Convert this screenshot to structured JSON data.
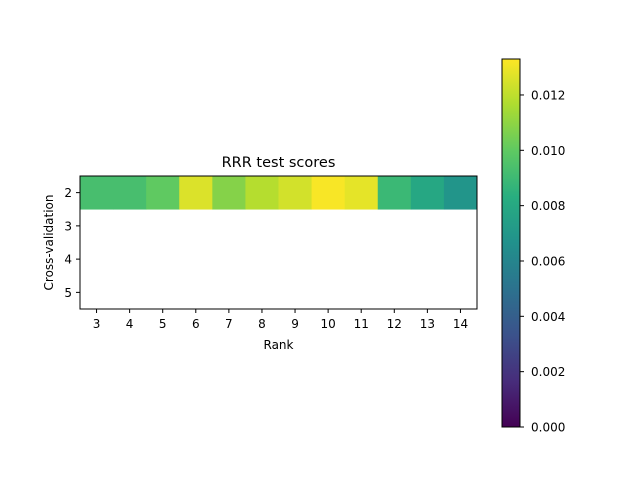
{
  "chart_data": {
    "type": "heatmap",
    "title": "RRR test scores",
    "xlabel": "Rank",
    "ylabel": "Cross-validation",
    "x_categories": [
      "3",
      "4",
      "5",
      "6",
      "7",
      "8",
      "9",
      "10",
      "11",
      "12",
      "13",
      "14"
    ],
    "y_categories": [
      "2",
      "3",
      "4",
      "5"
    ],
    "values": [
      [
        0.0093,
        0.0093,
        0.01,
        0.0126,
        0.0108,
        0.0118,
        0.0124,
        0.0132,
        0.0128,
        0.0089,
        0.0079,
        0.0069
      ],
      [
        null,
        null,
        null,
        null,
        null,
        null,
        null,
        null,
        null,
        null,
        null,
        null
      ],
      [
        null,
        null,
        null,
        null,
        null,
        null,
        null,
        null,
        null,
        null,
        null,
        null
      ],
      [
        null,
        null,
        null,
        null,
        null,
        null,
        null,
        null,
        null,
        null,
        null,
        null
      ]
    ],
    "colormap": "viridis",
    "colorbar": {
      "vmin": 0.0,
      "vmax": 0.0133,
      "ticks": [
        0.0,
        0.002,
        0.004,
        0.006,
        0.008,
        0.01,
        0.012
      ],
      "tick_labels": [
        "0.000",
        "0.002",
        "0.004",
        "0.006",
        "0.008",
        "0.010",
        "0.012"
      ]
    }
  }
}
